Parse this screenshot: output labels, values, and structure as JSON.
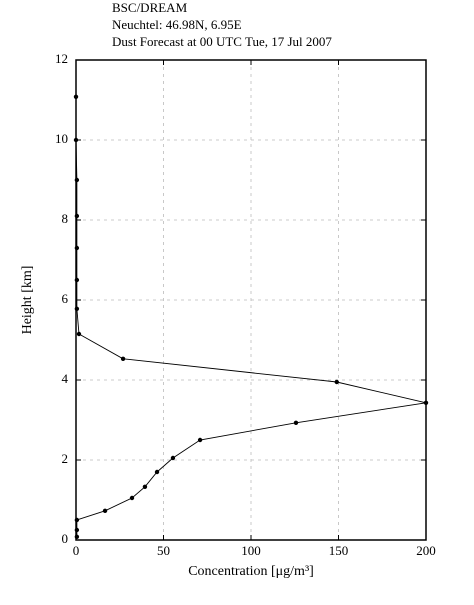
{
  "chart_data": {
    "type": "line",
    "title_lines": [
      "BSC/DREAM",
      "Neuchtel: 46.98N, 6.95E",
      "Dust Forecast at 00 UTC Tue, 17 Jul 2007"
    ],
    "xlabel": "Concentration [μg/m³]",
    "ylabel": "Height [km]",
    "x": [
      0,
      0,
      0.5,
      0.5,
      0.5,
      0.5,
      0.5,
      1.7,
      26.9,
      149,
      200,
      125.7,
      70.9,
      55.4,
      46.3,
      39.4,
      32,
      16.6,
      0.5,
      0.5,
      0.5
    ],
    "values": [
      11.08,
      10.0,
      9.0,
      8.1,
      7.3,
      6.5,
      5.78,
      5.15,
      4.53,
      3.95,
      3.43,
      2.93,
      2.5,
      2.05,
      1.7,
      1.33,
      1.05,
      0.73,
      0.5,
      0.25,
      0.08
    ],
    "color": "#000000",
    "xlim": [
      0,
      200
    ],
    "xticks": [
      0,
      50,
      100,
      150,
      200
    ],
    "ylim": [
      0,
      12
    ],
    "yticks": [
      0,
      2,
      4,
      6,
      8,
      10,
      12
    ],
    "grid": true
  }
}
